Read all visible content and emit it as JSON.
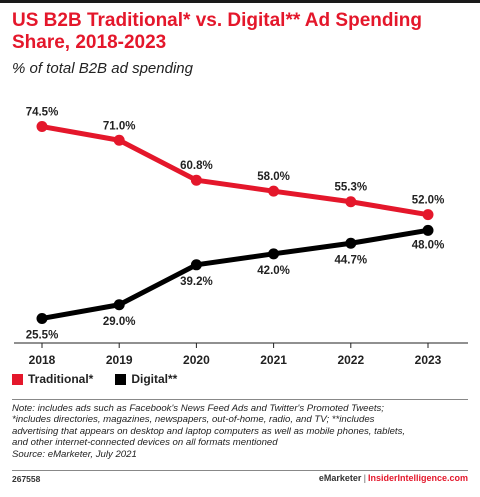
{
  "header": {
    "title": "US B2B Traditional* vs. Digital** Ad Spending Share, 2018-2023",
    "subtitle": "% of total B2B ad spending"
  },
  "chart_data": {
    "type": "line",
    "title": "US B2B Traditional* vs. Digital** Ad Spending Share, 2018-2023",
    "subtitle": "% of total B2B ad spending",
    "xlabel": "",
    "ylabel": "",
    "categories": [
      "2018",
      "2019",
      "2020",
      "2021",
      "2022",
      "2023"
    ],
    "ylim": [
      20,
      80
    ],
    "grid": false,
    "legend_position": "bottom-left",
    "series": [
      {
        "name": "Traditional*",
        "color": "#e4172b",
        "values": [
          74.5,
          71.0,
          60.8,
          58.0,
          55.3,
          52.0
        ],
        "labels": [
          "74.5%",
          "71.0%",
          "60.8%",
          "58.0%",
          "55.3%",
          "52.0%"
        ]
      },
      {
        "name": "Digital**",
        "color": "#000000",
        "values": [
          25.5,
          29.0,
          39.2,
          42.0,
          44.7,
          48.0
        ],
        "labels": [
          "25.5%",
          "29.0%",
          "39.2%",
          "42.0%",
          "44.7%",
          "48.0%"
        ]
      }
    ]
  },
  "notes": {
    "line1": "Note: includes ads such as Facebook's News Feed Ads and Twitter's Promoted Tweets;",
    "line2": "*includes directories, magazines, newspapers, out-of-home, radio, and TV; **includes",
    "line3": "advertising that appears on desktop and laptop computers as well as mobile phones, tablets,",
    "line4": "and other internet-connected devices on all formats mentioned",
    "source": "Source: eMarketer, July 2021"
  },
  "footer": {
    "chart_id": "267558",
    "brand": "eMarketer",
    "separator": "|",
    "site": "InsiderIntelligence.com"
  }
}
